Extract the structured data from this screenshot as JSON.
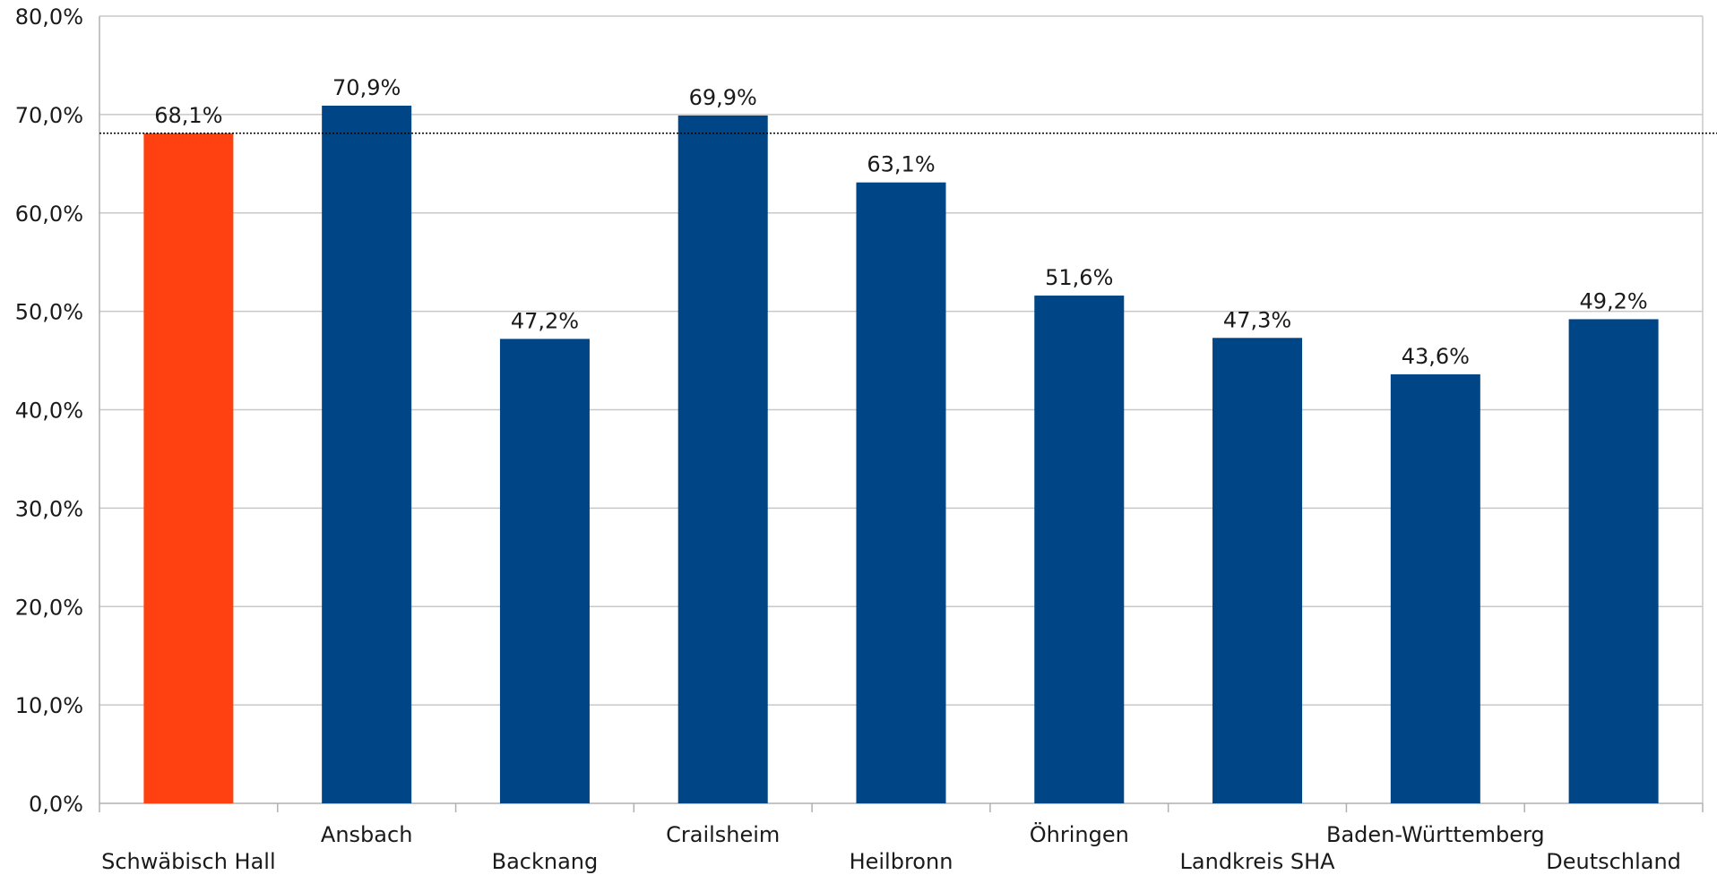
{
  "chart_data": {
    "type": "bar",
    "categories": [
      "Schwäbisch Hall",
      "Ansbach",
      "Backnang",
      "Crailsheim",
      "Heilbronn",
      "Öhringen",
      "Landkreis SHA",
      "Baden-Württemberg",
      "Deutschland"
    ],
    "values": [
      68.1,
      70.9,
      47.2,
      69.9,
      63.1,
      51.6,
      47.3,
      43.6,
      49.2
    ],
    "data_labels": [
      "68,1%",
      "70,9%",
      "47,2%",
      "69,9%",
      "63,1%",
      "51,6%",
      "47,3%",
      "43,6%",
      "49,2%"
    ],
    "bar_colors": [
      "#ff4010",
      "#004585",
      "#004585",
      "#004585",
      "#004585",
      "#004585",
      "#004585",
      "#004585",
      "#004585"
    ],
    "ylim": [
      0,
      80
    ],
    "yticks": [
      0,
      10,
      20,
      30,
      40,
      50,
      60,
      70,
      80
    ],
    "ytick_labels": [
      "0,0%",
      "10,0%",
      "20,0%",
      "30,0%",
      "40,0%",
      "50,0%",
      "60,0%",
      "70,0%",
      "80,0%"
    ],
    "reference_line": {
      "value": 68.1,
      "style": "dotted",
      "color": "#000000"
    },
    "grid": true,
    "gridline_color": "#c8c8c8",
    "title": "",
    "xlabel": "",
    "ylabel": ""
  }
}
